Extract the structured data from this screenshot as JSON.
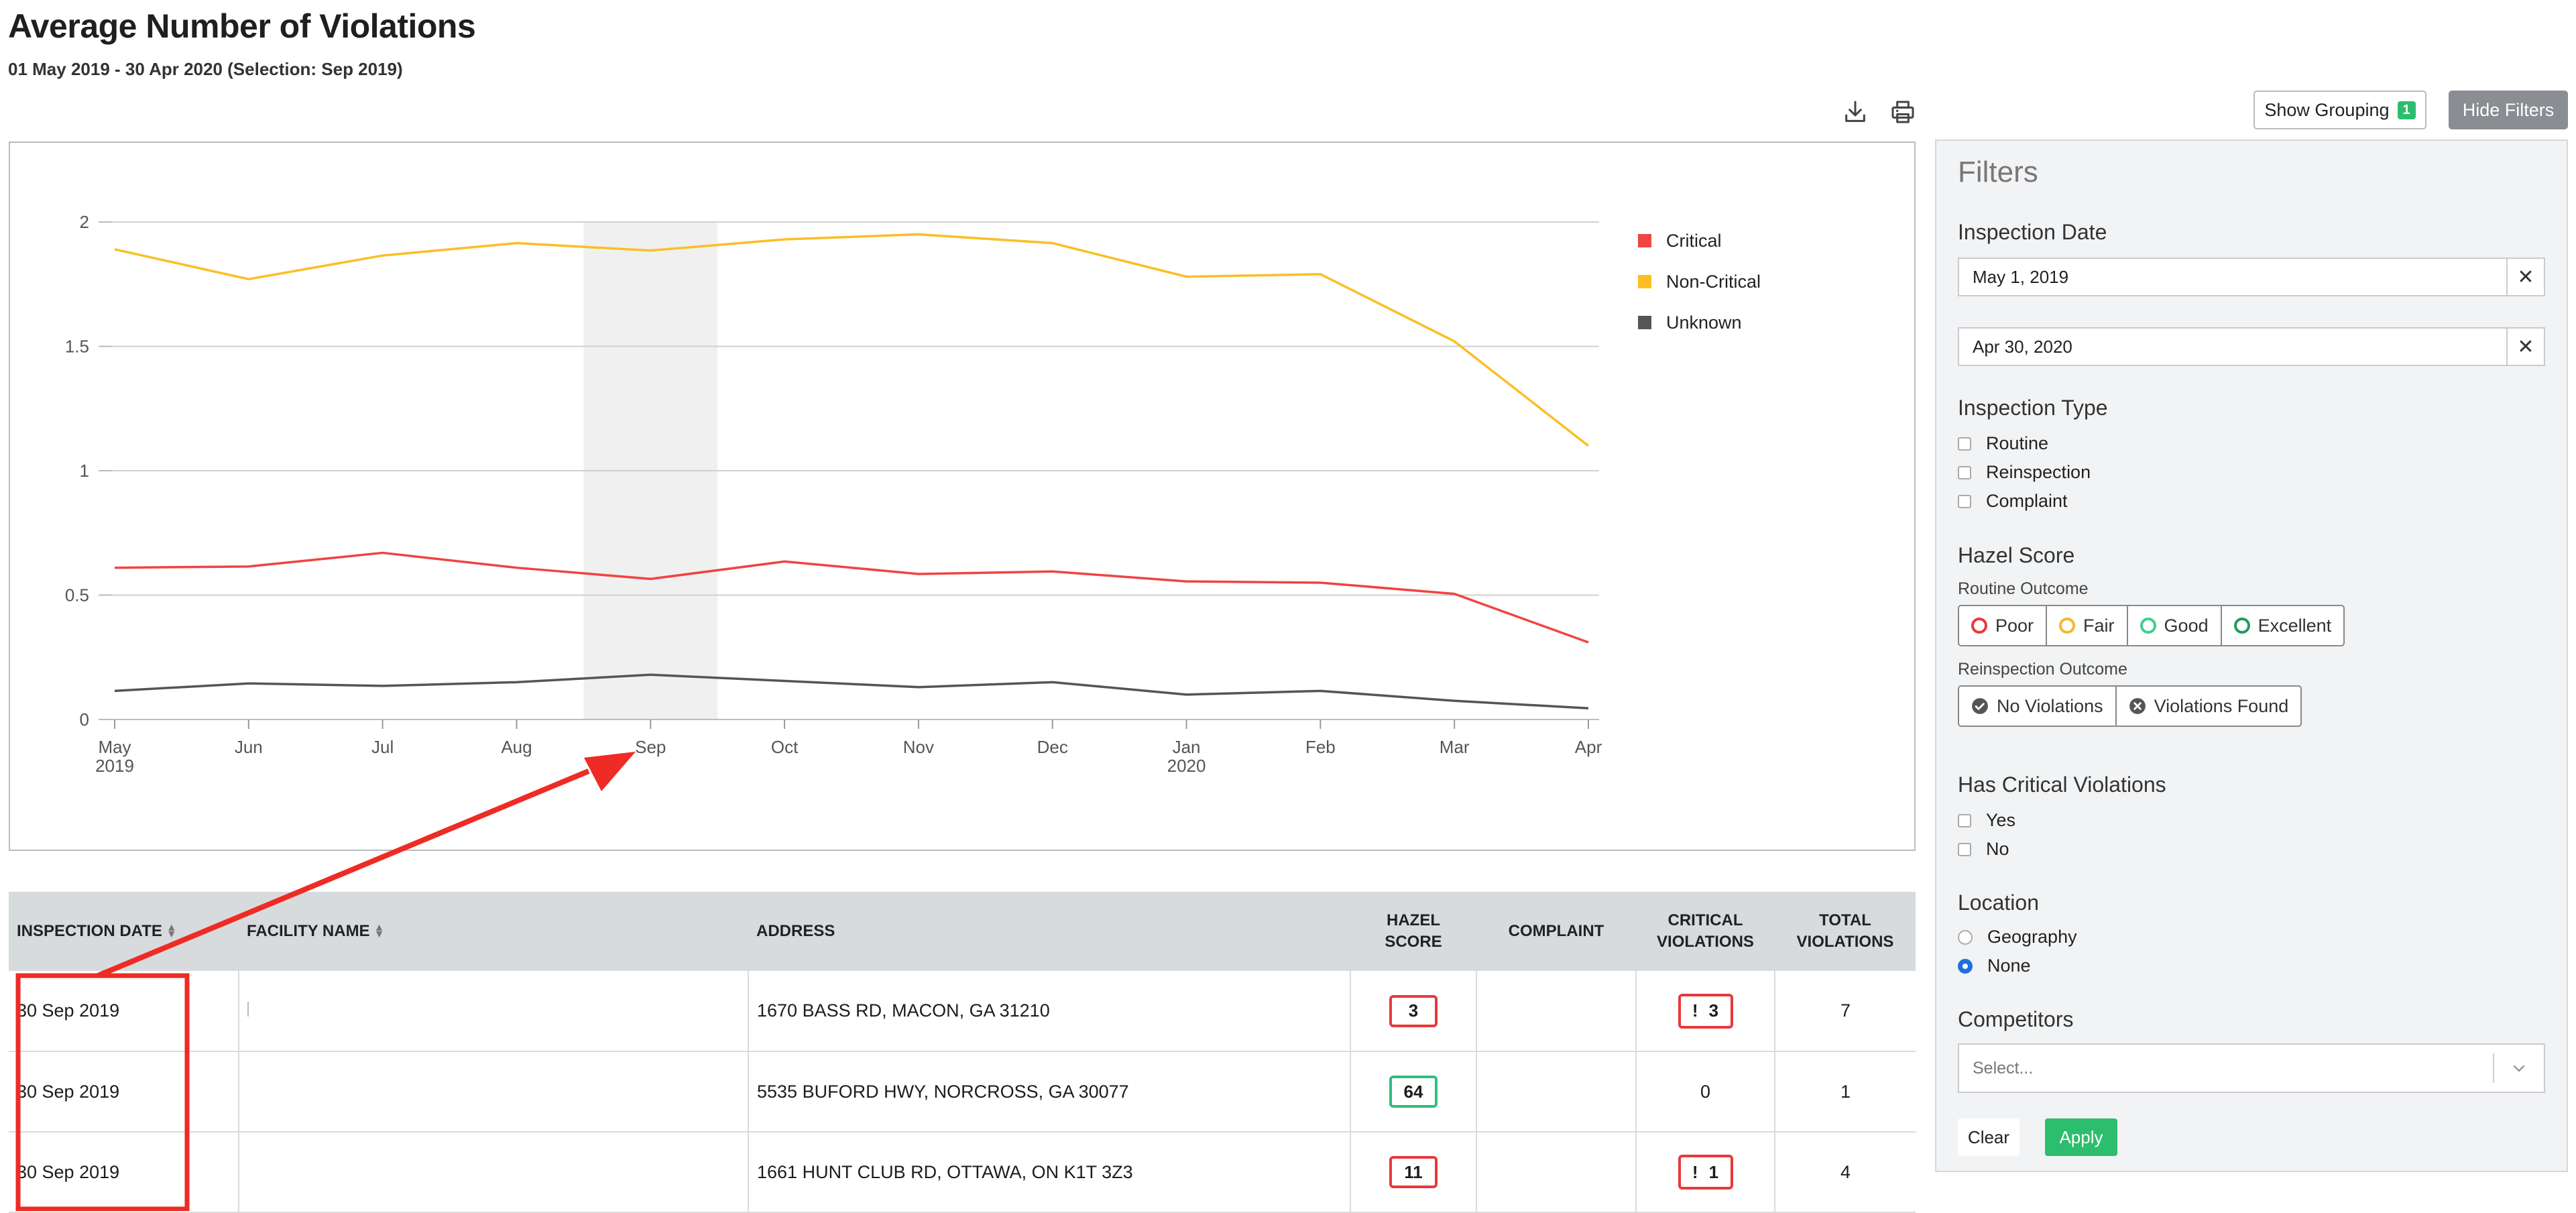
{
  "header": {
    "title": "Average Number of Violations",
    "subtitle": "01 May 2019 - 30 Apr 2020 (Selection: Sep 2019)"
  },
  "toolbar": {
    "download_icon": "download-icon",
    "print_icon": "printer-icon",
    "show_grouping_label": "Show Grouping",
    "grouping_count": "1",
    "hide_filters_label": "Hide Filters"
  },
  "chart_data": {
    "type": "line",
    "title": "",
    "xlabel": "",
    "ylabel": "",
    "categories": [
      "May\n2019",
      "Jun",
      "Jul",
      "Aug",
      "Sep",
      "Oct",
      "Nov",
      "Dec",
      "Jan\n2020",
      "Feb",
      "Mar",
      "Apr"
    ],
    "ylim": [
      0,
      2
    ],
    "yticks": [
      "0",
      "0.5",
      "1",
      "1.5",
      "2"
    ],
    "grid": true,
    "legend_position": "right",
    "highlight_category": "Sep",
    "series": [
      {
        "name": "Critical",
        "color": "#ef4444",
        "values": [
          0.61,
          0.615,
          0.67,
          0.61,
          0.565,
          0.635,
          0.585,
          0.595,
          0.555,
          0.55,
          0.505,
          0.31
        ]
      },
      {
        "name": "Non-Critical",
        "color": "#fbbf24",
        "values": [
          1.89,
          1.77,
          1.865,
          1.915,
          1.885,
          1.93,
          1.95,
          1.915,
          1.78,
          1.79,
          1.52,
          1.1
        ]
      },
      {
        "name": "Unknown",
        "color": "#555555",
        "values": [
          0.115,
          0.145,
          0.135,
          0.15,
          0.18,
          0.155,
          0.13,
          0.15,
          0.1,
          0.115,
          0.075,
          0.045
        ]
      }
    ]
  },
  "table": {
    "columns": [
      "Inspection Date",
      "Facility Name",
      "Address",
      "Hazel Score",
      "Complaint",
      "Critical Violations",
      "Total Violations"
    ],
    "rows": [
      {
        "date": "30 Sep 2019",
        "facility": "",
        "address": "1670 BASS RD, MACON, GA 31210",
        "hazel": "3",
        "hazel_status": "poor",
        "complaint": "",
        "critical_mark": "!",
        "critical": "3",
        "total": "7"
      },
      {
        "date": "30 Sep 2019",
        "facility": "",
        "address": "5535 BUFORD HWY, NORCROSS, GA 30077",
        "hazel": "64",
        "hazel_status": "good",
        "complaint": "",
        "critical_mark": "",
        "critical": "0",
        "total": "1"
      },
      {
        "date": "30 Sep 2019",
        "facility": "",
        "address": "1661 HUNT CLUB RD, OTTAWA, ON K1T 3Z3",
        "hazel": "11",
        "hazel_status": "poor",
        "complaint": "",
        "critical_mark": "!",
        "critical": "1",
        "total": "4"
      }
    ]
  },
  "filters": {
    "title": "Filters",
    "inspection_date_label": "Inspection Date",
    "date_from": "May 1, 2019",
    "date_to": "Apr 30, 2020",
    "clear_glyph": "✕",
    "inspection_type_label": "Inspection Type",
    "inspection_types": [
      "Routine",
      "Reinspection",
      "Complaint"
    ],
    "hazel_score_label": "Hazel Score",
    "routine_outcome_label": "Routine Outcome",
    "routine_outcomes": [
      {
        "label": "Poor",
        "color": "#e8393c"
      },
      {
        "label": "Fair",
        "color": "#f5b82e"
      },
      {
        "label": "Good",
        "color": "#3fcf8e"
      },
      {
        "label": "Excellent",
        "color": "#1f9d5c"
      }
    ],
    "reinspection_outcome_label": "Reinspection Outcome",
    "reinspection_outcomes": [
      "No Violations",
      "Violations Found"
    ],
    "has_critical_label": "Has Critical Violations",
    "has_critical_options": [
      "Yes",
      "No"
    ],
    "location_label": "Location",
    "location_options": [
      "Geography",
      "None"
    ],
    "location_selected": "None",
    "competitors_label": "Competitors",
    "competitors_placeholder": "Select...",
    "clear_label": "Clear",
    "apply_label": "Apply"
  },
  "colors": {
    "annotation": "#ee2b24",
    "apply": "#2dbd6e",
    "hide_filters": "#8a8d91"
  }
}
